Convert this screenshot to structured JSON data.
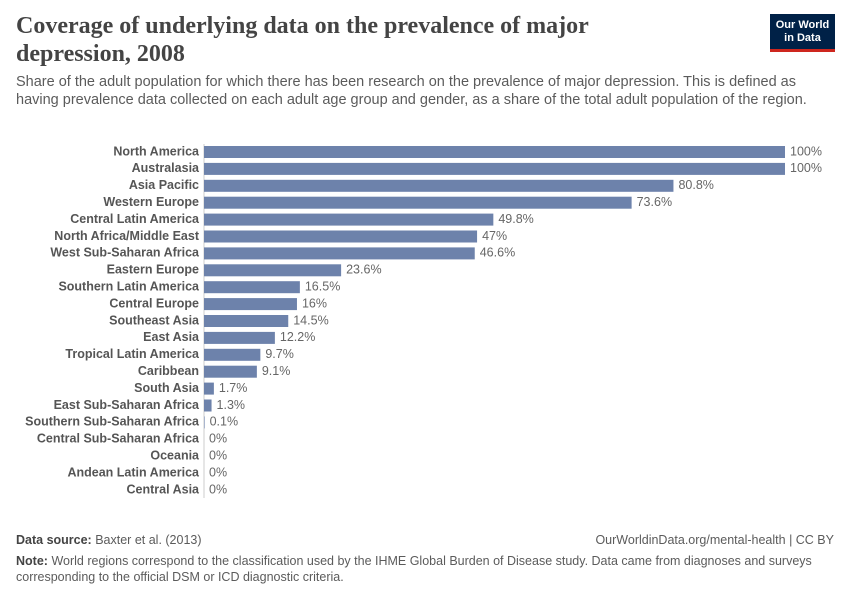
{
  "chart_data": {
    "type": "bar",
    "orientation": "horizontal",
    "title": "Coverage of underlying data on the prevalence of major depression, 2008",
    "subtitle": "Share of the adult population for which there has been research on the prevalence of major depression. This is defined as having prevalence data collected on each adult age group and gender, as a share of the total adult population of the region.",
    "logo": [
      "Our World",
      "in Data"
    ],
    "categories": [
      "North America",
      "Australasia",
      "Asia Pacific",
      "Western Europe",
      "Central Latin America",
      "North Africa/Middle East",
      "West Sub-Saharan Africa",
      "Eastern Europe",
      "Southern Latin America",
      "Central Europe",
      "Southeast Asia",
      "East Asia",
      "Tropical Latin America",
      "Caribbean",
      "South Asia",
      "East Sub-Saharan Africa",
      "Southern Sub-Saharan Africa",
      "Central Sub-Saharan Africa",
      "Oceania",
      "Andean Latin America",
      "Central Asia"
    ],
    "values": [
      100,
      100,
      80.8,
      73.6,
      49.8,
      47,
      46.6,
      23.6,
      16.5,
      16,
      14.5,
      12.2,
      9.7,
      9.1,
      1.7,
      1.3,
      0.1,
      0,
      0,
      0,
      0
    ],
    "value_labels": [
      "100%",
      "100%",
      "80.8%",
      "73.6%",
      "49.8%",
      "47%",
      "46.6%",
      "23.6%",
      "16.5%",
      "16%",
      "14.5%",
      "12.2%",
      "9.7%",
      "9.1%",
      "1.7%",
      "1.3%",
      "0.1%",
      "0%",
      "0%",
      "0%",
      "0%"
    ],
    "color": "#6d82ab",
    "source_label": "Data source:",
    "source": "Baxter et al. (2013)",
    "url": "OurWorldinData.org/mental-health | CC BY",
    "note_label": "Note:",
    "note": "World regions correspond to the classification used by the IHME Global Burden of Disease study. Data came from diagnoses and surveys corresponding to the official DSM or ICD diagnostic criteria."
  }
}
